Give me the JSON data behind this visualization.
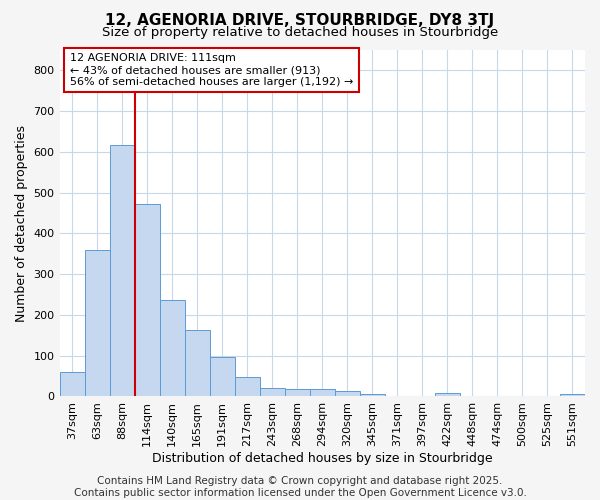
{
  "title1": "12, AGENORIA DRIVE, STOURBRIDGE, DY8 3TJ",
  "title2": "Size of property relative to detached houses in Stourbridge",
  "xlabel": "Distribution of detached houses by size in Stourbridge",
  "ylabel": "Number of detached properties",
  "categories": [
    "37sqm",
    "63sqm",
    "88sqm",
    "114sqm",
    "140sqm",
    "165sqm",
    "191sqm",
    "217sqm",
    "243sqm",
    "268sqm",
    "294sqm",
    "320sqm",
    "345sqm",
    "371sqm",
    "397sqm",
    "422sqm",
    "448sqm",
    "474sqm",
    "500sqm",
    "525sqm",
    "551sqm"
  ],
  "values": [
    60,
    360,
    617,
    473,
    237,
    163,
    98,
    47,
    20,
    19,
    18,
    13,
    5,
    2,
    1,
    8,
    1,
    1,
    1,
    1,
    7
  ],
  "bar_color": "#c5d8f0",
  "bar_edge_color": "#5b9bd5",
  "fig_background_color": "#f5f5f5",
  "plot_background_color": "#ffffff",
  "grid_color": "#c8d8e8",
  "vline_color": "#cc0000",
  "vline_x_index": 3,
  "annotation_text": "12 AGENORIA DRIVE: 111sqm\n← 43% of detached houses are smaller (913)\n56% of semi-detached houses are larger (1,192) →",
  "annotation_box_facecolor": "#ffffff",
  "annotation_box_edgecolor": "#cc0000",
  "footer": "Contains HM Land Registry data © Crown copyright and database right 2025.\nContains public sector information licensed under the Open Government Licence v3.0.",
  "ylim": [
    0,
    850
  ],
  "yticks": [
    0,
    100,
    200,
    300,
    400,
    500,
    600,
    700,
    800
  ],
  "title1_fontsize": 11,
  "title2_fontsize": 9.5,
  "xlabel_fontsize": 9,
  "ylabel_fontsize": 9,
  "tick_fontsize": 8,
  "annotation_fontsize": 8,
  "footer_fontsize": 7.5
}
